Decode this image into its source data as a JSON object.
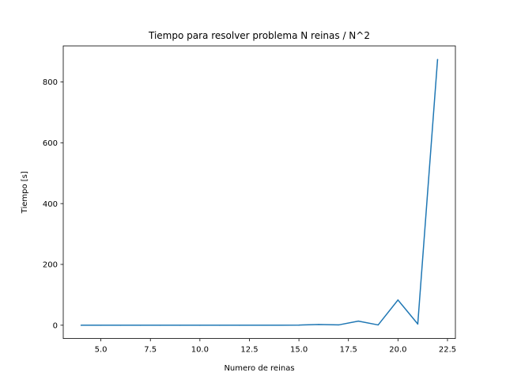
{
  "chart_data": {
    "type": "line",
    "title": "Tiempo para resolver problema N reinas / N^2",
    "xlabel": "Numero de reinas",
    "ylabel": "Tiempo [s]",
    "xlim": [
      3.1,
      22.9
    ],
    "ylim": [
      -43.7,
      918.5
    ],
    "xticks": [
      5.0,
      7.5,
      10.0,
      12.5,
      15.0,
      17.5,
      20.0,
      22.5
    ],
    "xtick_labels": [
      "5.0",
      "7.5",
      "10.0",
      "12.5",
      "15.0",
      "17.5",
      "20.0",
      "22.5"
    ],
    "yticks": [
      0,
      200,
      400,
      600,
      800
    ],
    "ytick_labels": [
      "0",
      "200",
      "400",
      "600",
      "800"
    ],
    "grid": false,
    "series": [
      {
        "color": "#1f77b4",
        "x": [
          4,
          5,
          6,
          7,
          8,
          9,
          10,
          11,
          12,
          13,
          14,
          15,
          16,
          17,
          18,
          19,
          20,
          21,
          22
        ],
        "y": [
          0.0,
          0.0,
          0.0,
          0.0,
          0.0,
          0.0,
          0.0,
          0.0,
          0.0,
          0.1,
          0.3,
          0.5,
          2.5,
          1.0,
          13.5,
          1.0,
          83.0,
          4.0,
          874.0
        ]
      }
    ]
  }
}
